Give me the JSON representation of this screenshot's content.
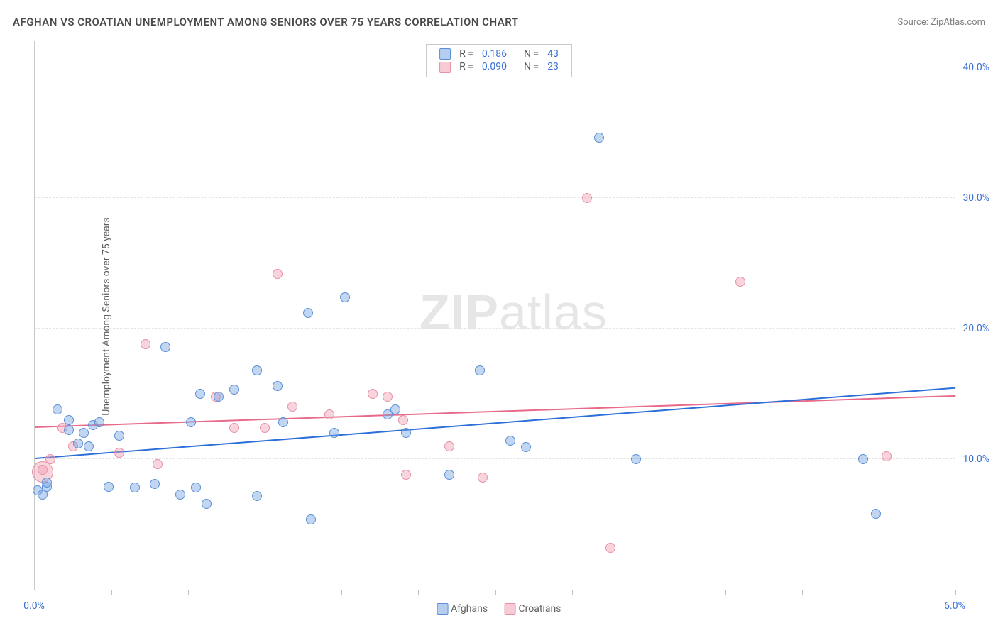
{
  "header": {
    "title": "AFGHAN VS CROATIAN UNEMPLOYMENT AMONG SENIORS OVER 75 YEARS CORRELATION CHART",
    "source": "Source: ZipAtlas.com"
  },
  "watermark": {
    "bold": "ZIP",
    "rest": "atlas"
  },
  "chart": {
    "type": "scatter",
    "y_axis_title": "Unemployment Among Seniors over 75 years",
    "xlim": [
      0.0,
      6.0
    ],
    "ylim": [
      0.0,
      42.0
    ],
    "x_ticks": [
      0.0,
      0.5,
      1.0,
      1.5,
      2.0,
      2.5,
      3.0,
      3.5,
      4.0,
      4.5,
      5.0,
      5.5,
      6.0
    ],
    "x_tick_labels": {
      "0": "0.0%",
      "6": "6.0%"
    },
    "y_gridlines": [
      10.0,
      20.0,
      30.0,
      40.0
    ],
    "y_tick_labels": {
      "10": "10.0%",
      "20": "20.0%",
      "30": "30.0%",
      "40": "40.0%"
    },
    "background_color": "#ffffff",
    "grid_color": "#e4e4e4",
    "axis_color": "#c8c8c8",
    "tick_label_color": "#3a70d8",
    "series": {
      "afghans": {
        "label": "Afghans",
        "marker_fill": "rgba(120,165,225,0.45)",
        "marker_stroke": "#5a8fd8",
        "trend_color": "#2d6fd8",
        "marker_radius_px": 7,
        "points": [
          [
            0.02,
            7.6
          ],
          [
            0.05,
            7.3
          ],
          [
            0.08,
            7.9
          ],
          [
            0.08,
            8.2
          ],
          [
            0.15,
            13.8
          ],
          [
            0.22,
            12.2
          ],
          [
            0.22,
            13.0
          ],
          [
            0.28,
            11.2
          ],
          [
            0.32,
            12.0
          ],
          [
            0.35,
            11.0
          ],
          [
            0.38,
            12.6
          ],
          [
            0.42,
            12.8
          ],
          [
            0.48,
            7.9
          ],
          [
            0.55,
            11.8
          ],
          [
            0.65,
            7.8
          ],
          [
            0.78,
            8.1
          ],
          [
            0.85,
            18.6
          ],
          [
            0.95,
            7.3
          ],
          [
            1.02,
            12.8
          ],
          [
            1.05,
            7.8
          ],
          [
            1.08,
            15.0
          ],
          [
            1.12,
            6.6
          ],
          [
            1.2,
            14.8
          ],
          [
            1.3,
            15.3
          ],
          [
            1.45,
            16.8
          ],
          [
            1.45,
            7.2
          ],
          [
            1.58,
            15.6
          ],
          [
            1.62,
            12.8
          ],
          [
            1.78,
            21.2
          ],
          [
            1.8,
            5.4
          ],
          [
            1.95,
            12.0
          ],
          [
            2.02,
            22.4
          ],
          [
            2.3,
            13.4
          ],
          [
            2.35,
            13.8
          ],
          [
            2.42,
            12.0
          ],
          [
            2.7,
            8.8
          ],
          [
            2.9,
            16.8
          ],
          [
            3.1,
            11.4
          ],
          [
            3.2,
            10.9
          ],
          [
            3.68,
            34.6
          ],
          [
            3.92,
            10.0
          ],
          [
            5.4,
            10.0
          ],
          [
            5.48,
            5.8
          ]
        ],
        "trend": {
          "y_at_x0": 10.0,
          "y_at_x6": 15.4
        }
      },
      "croatians": {
        "label": "Croatians",
        "marker_fill": "rgba(240,160,180,0.45)",
        "marker_stroke": "#e890a8",
        "trend_color": "#e86a8a",
        "marker_radius_px": 7,
        "points": [
          [
            0.05,
            9.2
          ],
          [
            0.1,
            10.0
          ],
          [
            0.18,
            12.4
          ],
          [
            0.25,
            11.0
          ],
          [
            0.55,
            10.5
          ],
          [
            0.72,
            18.8
          ],
          [
            0.8,
            9.6
          ],
          [
            1.18,
            14.8
          ],
          [
            1.3,
            12.4
          ],
          [
            1.5,
            12.4
          ],
          [
            1.58,
            24.2
          ],
          [
            1.68,
            14.0
          ],
          [
            1.92,
            13.4
          ],
          [
            2.2,
            15.0
          ],
          [
            2.3,
            14.8
          ],
          [
            2.4,
            13.0
          ],
          [
            2.42,
            8.8
          ],
          [
            2.7,
            11.0
          ],
          [
            2.92,
            8.6
          ],
          [
            3.6,
            30.0
          ],
          [
            3.75,
            3.2
          ],
          [
            4.6,
            23.6
          ],
          [
            5.55,
            10.2
          ]
        ],
        "big_point": {
          "x": 0.05,
          "y": 9.0,
          "radius_px": 15
        },
        "trend": {
          "y_at_x0": 12.4,
          "y_at_x6": 14.8
        }
      }
    },
    "stats_box": {
      "rows": [
        {
          "series": "afghans",
          "R": "0.186",
          "N": "43"
        },
        {
          "series": "croatians",
          "R": "0.090",
          "N": "23"
        }
      ],
      "R_label": "R =",
      "N_label": "N ="
    },
    "legend": {
      "items": [
        {
          "series": "afghans",
          "label": "Afghans"
        },
        {
          "series": "croatians",
          "label": "Croatians"
        }
      ]
    }
  }
}
